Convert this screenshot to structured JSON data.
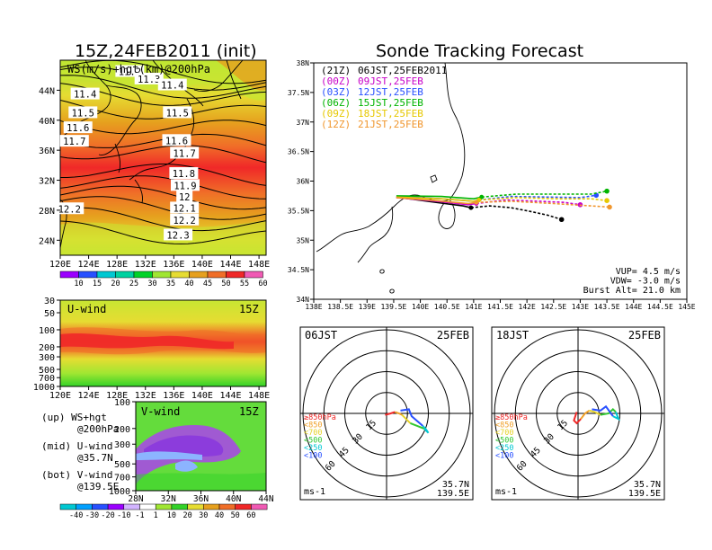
{
  "left_title": "15Z,24FEB2011 (init)",
  "right_title": "Sonde Tracking Forecast",
  "notes": [
    {
      "line1": "(up) WS+hgt",
      "line2": "@200hPa"
    },
    {
      "line1": "(mid) U-wind",
      "line2": "@35.7N"
    },
    {
      "line1": "(bot) V-wind",
      "line2": "@139.5E"
    }
  ],
  "colors": {
    "violet": "#9b00ff",
    "blue": "#2850ff",
    "cyan": "#00c8d2",
    "teal": "#00d2a0",
    "green": "#00d228",
    "lgreen": "#a0e632",
    "yellow": "#e6dc32",
    "orange": "#e6a01e",
    "dorange": "#f06e28",
    "red": "#f02828",
    "pink": "#f05ab4",
    "paleblue": "#8cb4ff"
  },
  "chart_data": [
    {
      "id": "ws_map",
      "type": "heatmap",
      "title": "WS(m/s)+hgt(km)@200hPa",
      "x_ticks": [
        "120E",
        "124E",
        "128E",
        "132E",
        "136E",
        "140E",
        "144E",
        "148E"
      ],
      "y_ticks": [
        "24N",
        "28N",
        "32N",
        "36N",
        "40N",
        "44N"
      ],
      "xlim": [
        120,
        149
      ],
      "ylim": [
        22,
        48
      ],
      "colorbar_labels": [
        "10",
        "15",
        "20",
        "25",
        "30",
        "35",
        "40",
        "45",
        "50",
        "55",
        "60"
      ],
      "height_contours": [
        {
          "label": "11.2",
          "lon": 129.8,
          "lat": 46.5
        },
        {
          "label": "11.3",
          "lon": 132.5,
          "lat": 45.5
        },
        {
          "label": "11.4",
          "lon": 135.8,
          "lat": 44.7
        },
        {
          "label": "11.4",
          "lon": 123.5,
          "lat": 43.5
        },
        {
          "label": "11.5",
          "lon": 136.5,
          "lat": 41.0
        },
        {
          "label": "11.5",
          "lon": 123.2,
          "lat": 41.0
        },
        {
          "label": "11.6",
          "lon": 122.5,
          "lat": 39.0
        },
        {
          "label": "11.6",
          "lon": 136.4,
          "lat": 37.3
        },
        {
          "label": "11.7",
          "lon": 122.0,
          "lat": 37.2
        },
        {
          "label": "11.7",
          "lon": 137.5,
          "lat": 35.6
        },
        {
          "label": "11.8",
          "lon": 137.4,
          "lat": 32.9
        },
        {
          "label": "11.9",
          "lon": 137.6,
          "lat": 31.3
        },
        {
          "label": "12",
          "lon": 137.5,
          "lat": 29.8
        },
        {
          "label": "12.1",
          "lon": 137.5,
          "lat": 28.3
        },
        {
          "label": "12.2",
          "lon": 121.3,
          "lat": 28.2
        },
        {
          "label": "12.2",
          "lon": 137.5,
          "lat": 26.7
        },
        {
          "label": "12.3",
          "lon": 136.6,
          "lat": 24.7
        }
      ]
    },
    {
      "id": "u_wind",
      "type": "heatmap",
      "title": "U-wind",
      "time_label": "15Z",
      "x_ticks": [
        "120E",
        "124E",
        "128E",
        "132E",
        "136E",
        "140E",
        "144E",
        "148E"
      ],
      "y_ticks": [
        "30",
        "50",
        "100",
        "200",
        "300",
        "500",
        "700",
        "1000"
      ],
      "ylim": [
        1000,
        30
      ],
      "log_scale": true
    },
    {
      "id": "v_wind",
      "type": "heatmap",
      "title": "V-wind",
      "time_label": "15Z",
      "x_ticks": [
        "28N",
        "32N",
        "36N",
        "40N",
        "44N"
      ],
      "y_ticks": [
        "100",
        "200",
        "300",
        "500",
        "700",
        "1000"
      ],
      "ylim": [
        1000,
        100
      ],
      "log_scale": true,
      "colorbar_labels": [
        "-40",
        "-30",
        "-20",
        "-10",
        "-1",
        "1",
        "10",
        "20",
        "30",
        "40",
        "50",
        "60"
      ]
    },
    {
      "id": "track",
      "type": "line",
      "x_ticks": [
        "138E",
        "138.5E",
        "139E",
        "139.5E",
        "140E",
        "140.5E",
        "141E",
        "141.5E",
        "142E",
        "142.5E",
        "143E",
        "143.5E",
        "144E",
        "144.5E",
        "145E"
      ],
      "y_ticks": [
        "34N",
        "34.5N",
        "35N",
        "35.5N",
        "36N",
        "36.5N",
        "37N",
        "37.5N",
        "38N"
      ],
      "xlim": [
        138,
        145
      ],
      "ylim": [
        34,
        38
      ],
      "legend": [
        {
          "code": "(21Z)",
          "time": "06JST,25FEB2011",
          "color": "#000000"
        },
        {
          "code": "(00Z)",
          "time": "09JST,25FEB",
          "color": "#c800c8"
        },
        {
          "code": "(03Z)",
          "time": "12JST,25FEB",
          "color": "#2850ff"
        },
        {
          "code": "(06Z)",
          "time": "15JST,25FEB",
          "color": "#00b400"
        },
        {
          "code": "(09Z)",
          "time": "18JST,25FEB",
          "color": "#e6c800"
        },
        {
          "code": "(12Z)",
          "time": "21JST,25FEB",
          "color": "#f0962d"
        }
      ],
      "params": [
        "VUP= 4.5 m/s",
        "VDW= -3.0 m/s",
        "Burst Alt= 21.0 km"
      ],
      "series": [
        {
          "color": "#000000",
          "x": [
            139.55,
            140.2,
            140.8,
            140.95,
            141.3,
            141.7,
            142.1,
            142.4,
            142.65
          ],
          "y": [
            35.73,
            35.65,
            35.58,
            35.55,
            35.58,
            35.55,
            35.48,
            35.42,
            35.35
          ]
        },
        {
          "color": "#c800c8",
          "x": [
            139.55,
            140.3,
            140.9,
            141.05,
            141.6,
            142.2,
            142.7,
            143.0
          ],
          "y": [
            35.72,
            35.66,
            35.6,
            35.62,
            35.68,
            35.66,
            35.64,
            35.6
          ]
        },
        {
          "color": "#2850ff",
          "x": [
            139.55,
            140.4,
            141.0,
            141.1,
            141.7,
            142.4,
            143.0,
            143.3
          ],
          "y": [
            35.74,
            35.7,
            35.66,
            35.68,
            35.74,
            35.73,
            35.72,
            35.76
          ]
        },
        {
          "color": "#00b400",
          "x": [
            139.55,
            140.4,
            141.0,
            141.15,
            141.8,
            142.6,
            143.2,
            143.5
          ],
          "y": [
            35.75,
            35.74,
            35.7,
            35.73,
            35.78,
            35.78,
            35.78,
            35.83
          ]
        },
        {
          "color": "#e6c800",
          "x": [
            139.55,
            140.4,
            141.0,
            141.1,
            141.8,
            142.6,
            143.2,
            143.5
          ],
          "y": [
            35.73,
            35.7,
            35.66,
            35.68,
            35.72,
            35.7,
            35.7,
            35.67
          ]
        },
        {
          "color": "#f0962d",
          "x": [
            139.55,
            140.3,
            140.9,
            141.05,
            141.7,
            142.5,
            143.2,
            143.55
          ],
          "y": [
            35.72,
            35.67,
            35.62,
            35.64,
            35.66,
            35.62,
            35.58,
            35.56
          ]
        }
      ]
    },
    {
      "id": "hodo_06",
      "type": "line",
      "time_label": "06JST",
      "date_label": "25FEB",
      "ring_labels": [
        "15",
        "30",
        "45",
        "60"
      ],
      "unit": "ms-1",
      "loc_lat": "35.7N",
      "loc_lon": "139.5E",
      "level_legend": [
        {
          "label": "≥850hPa",
          "color": "#f02828"
        },
        {
          "label": "<850",
          "color": "#f0a028"
        },
        {
          "label": "<700",
          "color": "#e6d228"
        },
        {
          "label": "<500",
          "color": "#32c832"
        },
        {
          "label": "<250",
          "color": "#00c8d2"
        },
        {
          "label": "<100",
          "color": "#2850ff"
        }
      ],
      "segments": [
        {
          "color": "#f02828",
          "u": [
            -1,
            3,
            6
          ],
          "v": [
            -1,
            0,
            1
          ]
        },
        {
          "color": "#f0a028",
          "u": [
            6,
            9,
            11
          ],
          "v": [
            1,
            0,
            -1
          ]
        },
        {
          "color": "#e6d228",
          "u": [
            11,
            14,
            17
          ],
          "v": [
            -1,
            -4,
            -7
          ]
        },
        {
          "color": "#32c832",
          "u": [
            17,
            22,
            27
          ],
          "v": [
            -7,
            -9,
            -11
          ]
        },
        {
          "color": "#00c8d2",
          "u": [
            27,
            30,
            28,
            26
          ],
          "v": [
            -11,
            -14,
            -11,
            -9
          ]
        },
        {
          "color": "#2850ff",
          "u": [
            26,
            18,
            16,
            10
          ],
          "v": [
            -9,
            -2,
            3,
            2
          ]
        }
      ]
    },
    {
      "id": "hodo_18",
      "type": "line",
      "time_label": "18JST",
      "date_label": "25FEB",
      "ring_labels": [
        "15",
        "30",
        "45",
        "60"
      ],
      "unit": "ms-1",
      "loc_lat": "35.7N",
      "loc_lon": "139.5E",
      "level_legend": [
        {
          "label": "≥850hPa",
          "color": "#f02828"
        },
        {
          "label": "<850",
          "color": "#f0a028"
        },
        {
          "label": "<700",
          "color": "#e6d228"
        },
        {
          "label": "<500",
          "color": "#32c832"
        },
        {
          "label": "<250",
          "color": "#00c8d2"
        },
        {
          "label": "<100",
          "color": "#2850ff"
        }
      ],
      "segments": [
        {
          "color": "#f02828",
          "u": [
            -1,
            -3,
            -1,
            2
          ],
          "v": [
            1,
            -5,
            -7,
            -4
          ]
        },
        {
          "color": "#f0a028",
          "u": [
            2,
            5,
            8
          ],
          "v": [
            -4,
            0,
            2
          ]
        },
        {
          "color": "#e6d228",
          "u": [
            8,
            12,
            16
          ],
          "v": [
            2,
            1,
            -1
          ]
        },
        {
          "color": "#32c832",
          "u": [
            16,
            22,
            25,
            27
          ],
          "v": [
            -1,
            0,
            3,
            1
          ]
        },
        {
          "color": "#00c8d2",
          "u": [
            27,
            29,
            25
          ],
          "v": [
            1,
            -4,
            -2
          ]
        },
        {
          "color": "#2850ff",
          "u": [
            25,
            20,
            16,
            10
          ],
          "v": [
            -2,
            5,
            2,
            3
          ]
        }
      ]
    }
  ]
}
